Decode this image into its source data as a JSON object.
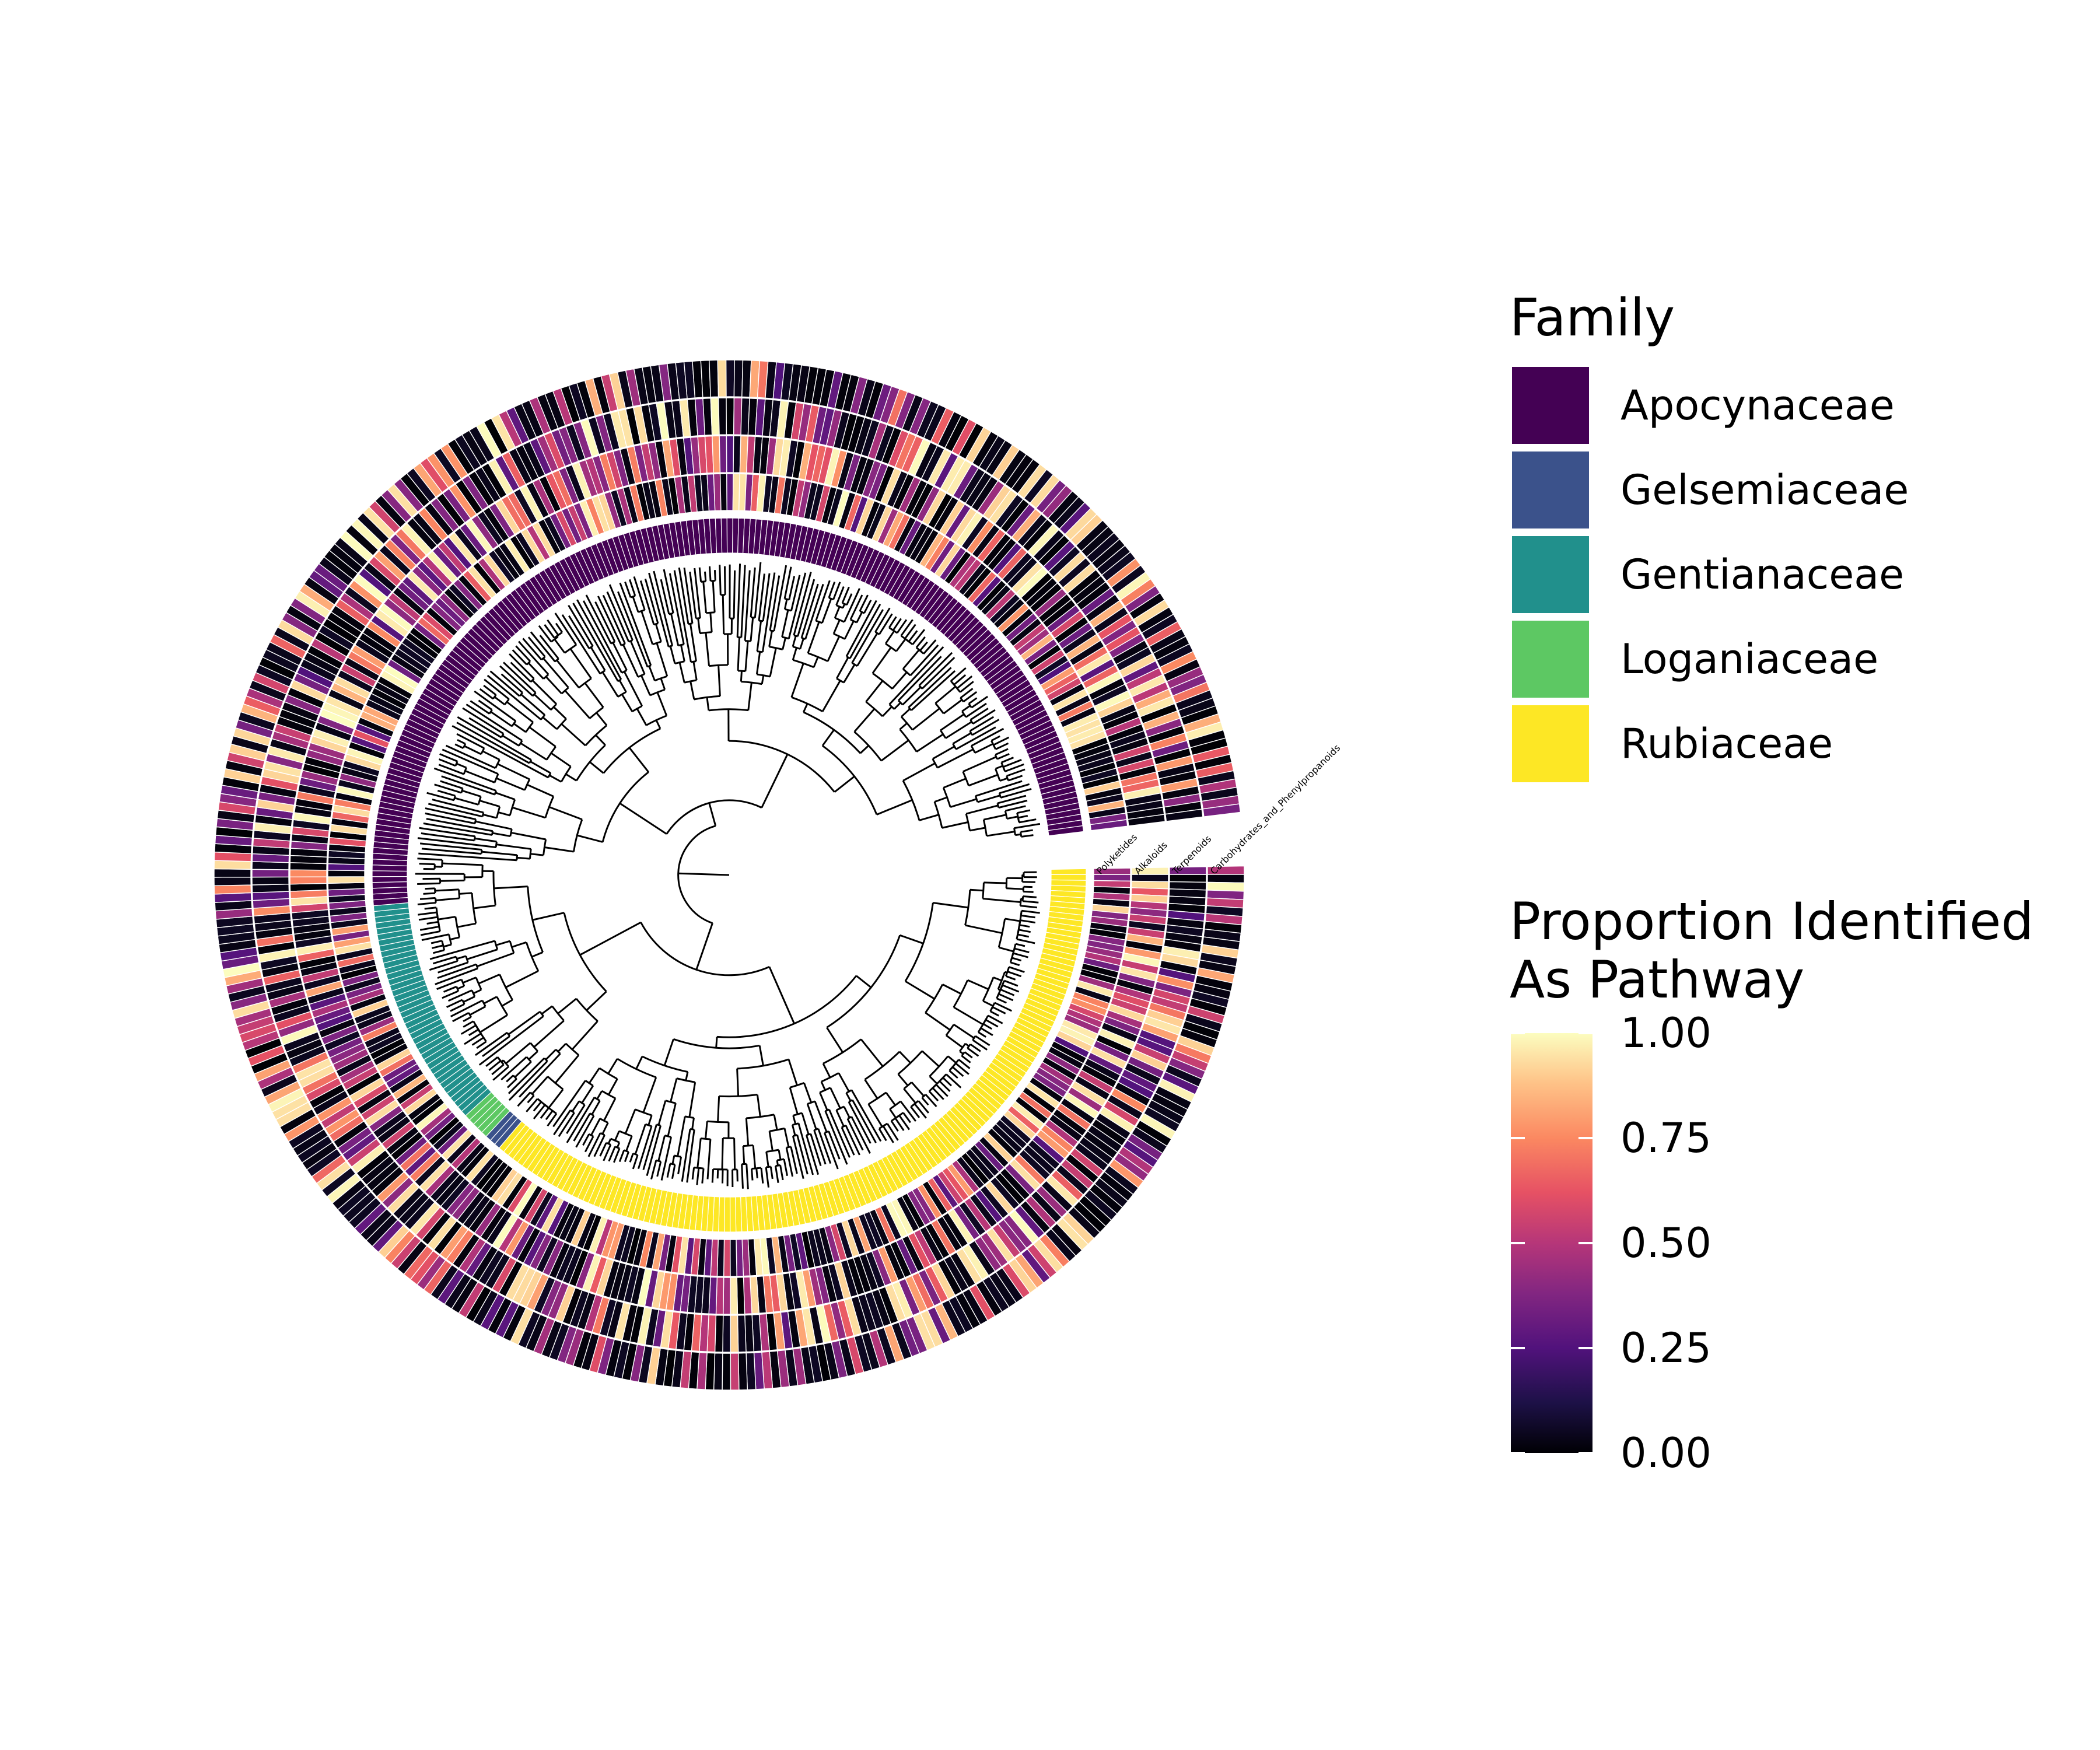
{
  "legend_family": {
    "title": "Family",
    "items": [
      {
        "label": "Apocynaceae",
        "color": "#440154"
      },
      {
        "label": "Gelsemiaceae",
        "color": "#3b528b"
      },
      {
        "label": "Gentianaceae",
        "color": "#21908c"
      },
      {
        "label": "Loganiaceae",
        "color": "#5dc863"
      },
      {
        "label": "Rubiaceae",
        "color": "#fde725"
      }
    ]
  },
  "legend_proportion": {
    "title_line1": "Proportion Identified",
    "title_line2": "As Pathway",
    "ticks": [
      "1.00",
      "0.75",
      "0.50",
      "0.25",
      "0.00"
    ],
    "colormap": "magma"
  },
  "heatmap_rings": [
    {
      "label": "Polyketides"
    },
    {
      "label": "Alkaloids"
    },
    {
      "label": "Terpenoids"
    },
    {
      "label": "Carbohydrates_and_Phenylpropanoids"
    }
  ],
  "family_counts": {
    "Rubiaceae": 140,
    "Gelsemiaceae": 3,
    "Loganiaceae": 5,
    "Gentianaceae": 40,
    "Apocynaceae": 190
  }
}
